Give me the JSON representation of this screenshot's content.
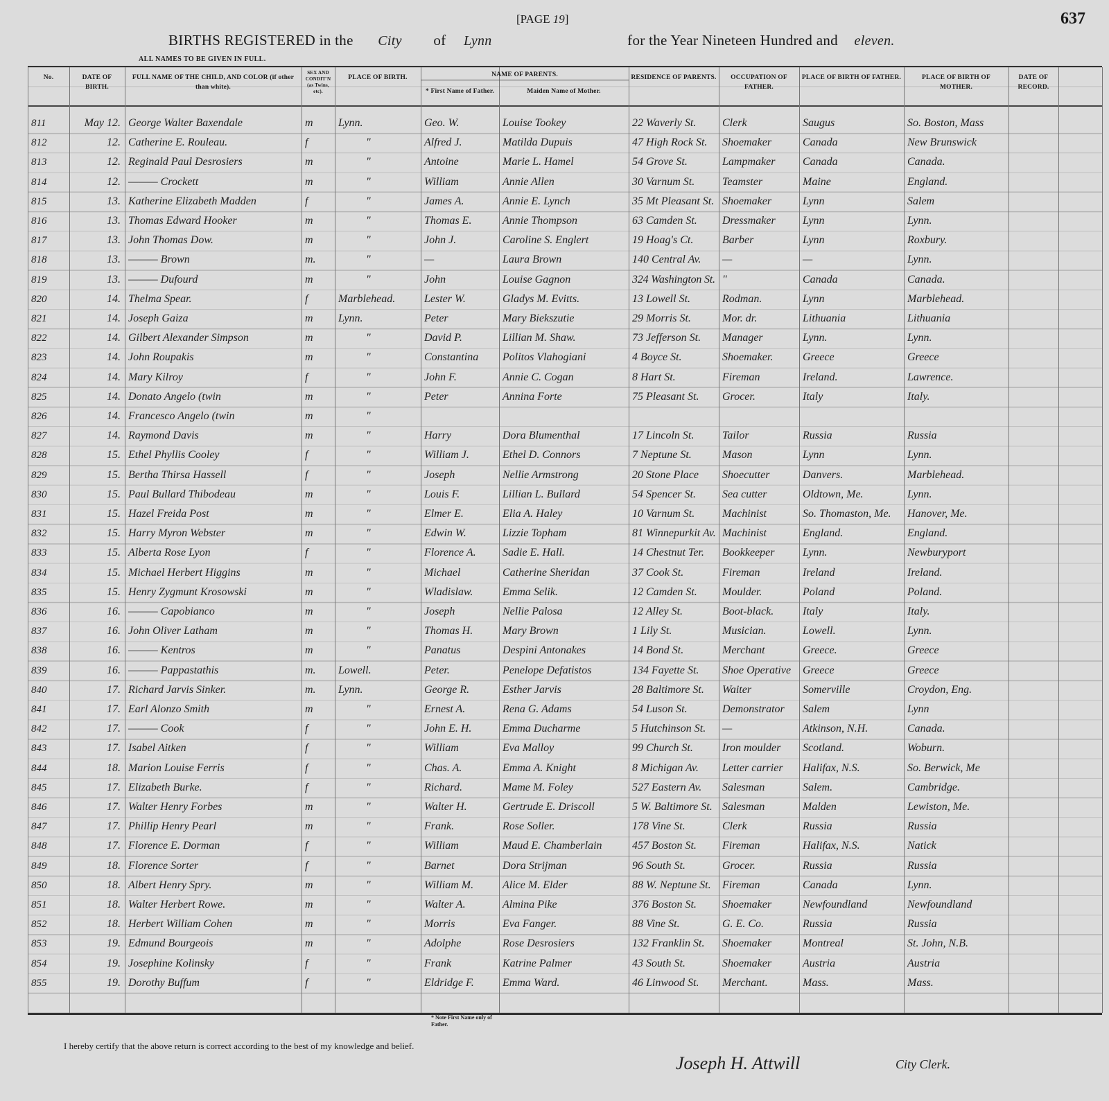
{
  "header": {
    "page_prefix": "[PAGE",
    "page_number": "19",
    "page_suffix": "]",
    "sheet_number": "637",
    "title_part1": "BIRTHS REGISTERED in the",
    "city_type": "City",
    "title_of": "of",
    "city_name": "Lynn",
    "title_part2": "for the Year Nineteen Hundred and",
    "year_word": "eleven.",
    "instruction": "ALL NAMES TO BE GIVEN IN FULL."
  },
  "columns": [
    "No.",
    "DATE OF BIRTH.",
    "FULL NAME OF THE CHILD, AND COLOR (if other than white).",
    "SEX AND CONDIT'N (as Twins, etc).",
    "PLACE OF BIRTH.",
    "* First Name of Father.",
    "Maiden Name of Mother.",
    "RESIDENCE OF PARENTS.",
    "OCCUPATION OF FATHER.",
    "PLACE OF BIRTH OF FATHER.",
    "PLACE OF BIRTH OF MOTHER.",
    "DATE OF RECORD."
  ],
  "parents_group_header": "NAME OF PARENTS.",
  "rows": [
    [
      "811",
      "May 12.",
      "George Walter Baxendale",
      "m",
      "Lynn.",
      "Geo. W.",
      "Louise Tookey",
      "22 Waverly St.",
      "Clerk",
      "Saugus",
      "So. Boston, Mass",
      ""
    ],
    [
      "812",
      "12.",
      "Catherine E. Rouleau.",
      "f",
      "\"",
      "Alfred J.",
      "Matilda Dupuis",
      "47 High Rock St.",
      "Shoemaker",
      "Canada",
      "New Brunswick",
      ""
    ],
    [
      "813",
      "12.",
      "Reginald Paul Desrosiers",
      "m",
      "\"",
      "Antoine",
      "Marie L. Hamel",
      "54 Grove St.",
      "Lampmaker",
      "Canada",
      "Canada.",
      ""
    ],
    [
      "814",
      "12.",
      "——— Crockett",
      "m",
      "\"",
      "William",
      "Annie Allen",
      "30 Varnum St.",
      "Teamster",
      "Maine",
      "England.",
      ""
    ],
    [
      "815",
      "13.",
      "Katherine Elizabeth Madden",
      "f",
      "\"",
      "James A.",
      "Annie E. Lynch",
      "35 Mt Pleasant St.",
      "Shoemaker",
      "Lynn",
      "Salem",
      ""
    ],
    [
      "816",
      "13.",
      "Thomas Edward Hooker",
      "m",
      "\"",
      "Thomas E.",
      "Annie Thompson",
      "63 Camden St.",
      "Dressmaker",
      "Lynn",
      "Lynn.",
      ""
    ],
    [
      "817",
      "13.",
      "John Thomas Dow.",
      "m",
      "\"",
      "John J.",
      "Caroline S. Englert",
      "19 Hoag's Ct.",
      "Barber",
      "Lynn",
      "Roxbury.",
      ""
    ],
    [
      "818",
      "13.",
      "——— Brown",
      "m.",
      "\"",
      "—",
      "Laura Brown",
      "140 Central Av.",
      "—",
      "—",
      "Lynn.",
      ""
    ],
    [
      "819",
      "13.",
      "——— Dufourd",
      "m",
      "\"",
      "John",
      "Louise Gagnon",
      "324 Washington St.",
      "\"",
      "Canada",
      "Canada.",
      ""
    ],
    [
      "820",
      "14.",
      "Thelma Spear.",
      "f",
      "Marblehead.",
      "Lester W.",
      "Gladys M. Evitts.",
      "13 Lowell St.",
      "Rodman.",
      "Lynn",
      "Marblehead.",
      ""
    ],
    [
      "821",
      "14.",
      "Joseph Gaiza",
      "m",
      "Lynn.",
      "Peter",
      "Mary Biekszutie",
      "29 Morris St.",
      "Mor. dr.",
      "Lithuania",
      "Lithuania",
      ""
    ],
    [
      "822",
      "14.",
      "Gilbert Alexander Simpson",
      "m",
      "\"",
      "David P.",
      "Lillian M. Shaw.",
      "73 Jefferson St.",
      "Manager",
      "Lynn.",
      "Lynn.",
      ""
    ],
    [
      "823",
      "14.",
      "John Roupakis",
      "m",
      "\"",
      "Constantina",
      "Politos Vlahogiani",
      "4 Boyce St.",
      "Shoemaker.",
      "Greece",
      "Greece",
      ""
    ],
    [
      "824",
      "14.",
      "Mary Kilroy",
      "f",
      "\"",
      "John F.",
      "Annie C. Cogan",
      "8 Hart St.",
      "Fireman",
      "Ireland.",
      "Lawrence.",
      ""
    ],
    [
      "825",
      "14.",
      "Donato Angelo (twin",
      "m",
      "\"",
      "Peter",
      "Annina Forte",
      "75 Pleasant St.",
      "Grocer.",
      "Italy",
      "Italy.",
      ""
    ],
    [
      "826",
      "14.",
      "Francesco Angelo (twin",
      "m",
      "\"",
      "",
      "",
      "",
      "",
      "",
      "",
      ""
    ],
    [
      "827",
      "14.",
      "Raymond Davis",
      "m",
      "\"",
      "Harry",
      "Dora Blumenthal",
      "17 Lincoln St.",
      "Tailor",
      "Russia",
      "Russia",
      ""
    ],
    [
      "828",
      "15.",
      "Ethel Phyllis Cooley",
      "f",
      "\"",
      "William J.",
      "Ethel D. Connors",
      "7 Neptune St.",
      "Mason",
      "Lynn",
      "Lynn.",
      ""
    ],
    [
      "829",
      "15.",
      "Bertha Thirsa Hassell",
      "f",
      "\"",
      "Joseph",
      "Nellie Armstrong",
      "20 Stone Place",
      "Shoecutter",
      "Danvers.",
      "Marblehead.",
      ""
    ],
    [
      "830",
      "15.",
      "Paul Bullard Thibodeau",
      "m",
      "\"",
      "Louis F.",
      "Lillian L. Bullard",
      "54 Spencer St.",
      "Sea cutter",
      "Oldtown, Me.",
      "Lynn.",
      ""
    ],
    [
      "831",
      "15.",
      "Hazel Freida Post",
      "m",
      "\"",
      "Elmer E.",
      "Elia A. Haley",
      "10 Varnum St.",
      "Machinist",
      "So. Thomaston, Me.",
      "Hanover, Me.",
      ""
    ],
    [
      "832",
      "15.",
      "Harry Myron Webster",
      "m",
      "\"",
      "Edwin W.",
      "Lizzie Topham",
      "81 Winnepurkit Av.",
      "Machinist",
      "England.",
      "England.",
      ""
    ],
    [
      "833",
      "15.",
      "Alberta Rose Lyon",
      "f",
      "\"",
      "Florence A.",
      "Sadie E. Hall.",
      "14 Chestnut Ter.",
      "Bookkeeper",
      "Lynn.",
      "Newburyport",
      ""
    ],
    [
      "834",
      "15.",
      "Michael Herbert Higgins",
      "m",
      "\"",
      "Michael",
      "Catherine Sheridan",
      "37 Cook St.",
      "Fireman",
      "Ireland",
      "Ireland.",
      ""
    ],
    [
      "835",
      "15.",
      "Henry Zygmunt Krosowski",
      "m",
      "\"",
      "Wladislaw.",
      "Emma Selik.",
      "12 Camden St.",
      "Moulder.",
      "Poland",
      "Poland.",
      ""
    ],
    [
      "836",
      "16.",
      "——— Capobianco",
      "m",
      "\"",
      "Joseph",
      "Nellie Palosa",
      "12 Alley St.",
      "Boot-black.",
      "Italy",
      "Italy.",
      ""
    ],
    [
      "837",
      "16.",
      "John Oliver Latham",
      "m",
      "\"",
      "Thomas H.",
      "Mary Brown",
      "1 Lily St.",
      "Musician.",
      "Lowell.",
      "Lynn.",
      ""
    ],
    [
      "838",
      "16.",
      "——— Kentros",
      "m",
      "\"",
      "Panatus",
      "Despini Antonakes",
      "14 Bond St.",
      "Merchant",
      "Greece.",
      "Greece",
      ""
    ],
    [
      "839",
      "16.",
      "——— Pappastathis",
      "m.",
      "Lowell.",
      "Peter.",
      "Penelope Defatistos",
      "134 Fayette St.",
      "Shoe Operative",
      "Greece",
      "Greece",
      ""
    ],
    [
      "840",
      "17.",
      "Richard Jarvis Sinker.",
      "m.",
      "Lynn.",
      "George R.",
      "Esther Jarvis",
      "28 Baltimore St.",
      "Waiter",
      "Somerville",
      "Croydon, Eng.",
      ""
    ],
    [
      "841",
      "17.",
      "Earl Alonzo Smith",
      "m",
      "\"",
      "Ernest A.",
      "Rena G. Adams",
      "54 Luson St.",
      "Demonstrator",
      "Salem",
      "Lynn",
      ""
    ],
    [
      "842",
      "17.",
      "——— Cook",
      "f",
      "\"",
      "John E. H.",
      "Emma Ducharme",
      "5 Hutchinson St.",
      "—",
      "Atkinson, N.H.",
      "Canada.",
      ""
    ],
    [
      "843",
      "17.",
      "Isabel Aitken",
      "f",
      "\"",
      "William",
      "Eva Malloy",
      "99 Church St.",
      "Iron moulder",
      "Scotland.",
      "Woburn.",
      ""
    ],
    [
      "844",
      "18.",
      "Marion Louise Ferris",
      "f",
      "\"",
      "Chas. A.",
      "Emma A. Knight",
      "8 Michigan Av.",
      "Letter carrier",
      "Halifax, N.S.",
      "So. Berwick, Me",
      ""
    ],
    [
      "845",
      "17.",
      "Elizabeth Burke.",
      "f",
      "\"",
      "Richard.",
      "Mame M. Foley",
      "527 Eastern Av.",
      "Salesman",
      "Salem.",
      "Cambridge.",
      ""
    ],
    [
      "846",
      "17.",
      "Walter Henry Forbes",
      "m",
      "\"",
      "Walter H.",
      "Gertrude E. Driscoll",
      "5 W. Baltimore St.",
      "Salesman",
      "Malden",
      "Lewiston, Me.",
      ""
    ],
    [
      "847",
      "17.",
      "Phillip Henry Pearl",
      "m",
      "\"",
      "Frank.",
      "Rose Soller.",
      "178 Vine St.",
      "Clerk",
      "Russia",
      "Russia",
      ""
    ],
    [
      "848",
      "17.",
      "Florence E. Dorman",
      "f",
      "\"",
      "William",
      "Maud E. Chamberlain",
      "457 Boston St.",
      "Fireman",
      "Halifax, N.S.",
      "Natick",
      ""
    ],
    [
      "849",
      "18.",
      "Florence Sorter",
      "f",
      "\"",
      "Barnet",
      "Dora Strijman",
      "96 South St.",
      "Grocer.",
      "Russia",
      "Russia",
      ""
    ],
    [
      "850",
      "18.",
      "Albert Henry Spry.",
      "m",
      "\"",
      "William M.",
      "Alice M. Elder",
      "88 W. Neptune St.",
      "Fireman",
      "Canada",
      "Lynn.",
      ""
    ],
    [
      "851",
      "18.",
      "Walter Herbert Rowe.",
      "m",
      "\"",
      "Walter A.",
      "Almina Pike",
      "376 Boston St.",
      "Shoemaker",
      "Newfoundland",
      "Newfoundland",
      ""
    ],
    [
      "852",
      "18.",
      "Herbert William Cohen",
      "m",
      "\"",
      "Morris",
      "Eva Fanger.",
      "88 Vine St.",
      "G. E. Co.",
      "Russia",
      "Russia",
      ""
    ],
    [
      "853",
      "19.",
      "Edmund Bourgeois",
      "m",
      "\"",
      "Adolphe",
      "Rose Desrosiers",
      "132 Franklin St.",
      "Shoemaker",
      "Montreal",
      "St. John, N.B.",
      ""
    ],
    [
      "854",
      "19.",
      "Josephine Kolinsky",
      "f",
      "\"",
      "Frank",
      "Katrine Palmer",
      "43 South St.",
      "Shoemaker",
      "Austria",
      "Austria",
      ""
    ],
    [
      "855",
      "19.",
      "Dorothy Buffum",
      "f",
      "\"",
      "Eldridge F.",
      "Emma Ward.",
      "46 Linwood St.",
      "Merchant.",
      "Mass.",
      "Mass.",
      ""
    ]
  ],
  "footnote": "* Note First Name only of Father.",
  "footer": {
    "certification": "I hereby certify that the above return is correct according to the best of my knowledge and belief.",
    "signature": "Joseph H. Attwill",
    "title": "City Clerk."
  }
}
